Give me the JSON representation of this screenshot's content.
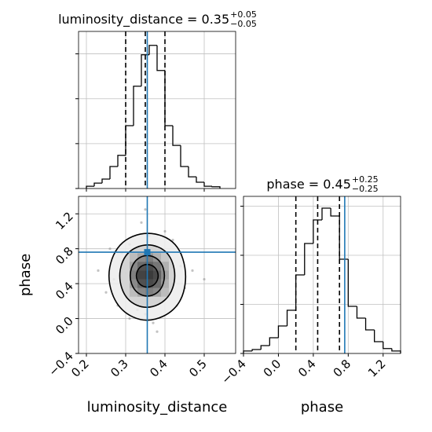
{
  "chart_data": [
    {
      "type": "histogram",
      "title": "luminosity_distance = 0.35",
      "title_upper": "+0.05",
      "title_lower": "−0.05",
      "bins": [
        0.2,
        0.22,
        0.24,
        0.26,
        0.28,
        0.3,
        0.32,
        0.34,
        0.36,
        0.38,
        0.4,
        0.42,
        0.44,
        0.46,
        0.48,
        0.5,
        0.52,
        0.54
      ],
      "values": [
        0.05,
        0.12,
        0.21,
        0.49,
        0.74,
        1.4,
        2.28,
        2.98,
        3.19,
        2.63,
        1.4,
        0.96,
        0.49,
        0.26,
        0.14,
        0.05,
        0.04
      ],
      "color": "#000000",
      "xlim": [
        0.18,
        0.58
      ],
      "xticks": [
        0.2,
        0.3,
        0.4,
        0.5
      ],
      "ylim": [
        0,
        3.5
      ],
      "yticks": [
        0,
        1,
        2,
        3
      ],
      "quantiles": [
        0.3,
        0.35,
        0.4
      ],
      "truth": 0.355,
      "truth_color": "#1f77b4",
      "grid": true
    },
    {
      "type": "scatter",
      "xlabel": "luminosity_distance",
      "ylabel": "phase",
      "x": [
        0.3,
        0.41,
        0.36,
        0.33,
        0.38,
        0.27,
        0.44,
        0.35,
        0.31,
        0.39,
        0.25,
        0.47,
        0.34,
        0.37,
        0.29,
        0.42,
        0.32,
        0.4,
        0.36,
        0.28,
        0.45,
        0.33,
        0.38,
        0.23,
        0.5,
        0.35,
        0.31,
        0.43,
        0.26,
        0.39
      ],
      "y": [
        0.52,
        0.31,
        0.95,
        0.1,
        0.7,
        0.45,
        0.6,
        0.05,
        0.85,
        0.25,
        0.3,
        0.55,
        1.1,
        -0.05,
        0.75,
        0.9,
        0.4,
        1.0,
        0.2,
        0.15,
        0.35,
        0.65,
        -0.15,
        0.55,
        0.45,
        1.25,
        0.0,
        0.15,
        0.8,
        0.58
      ],
      "color": "#888888",
      "hist2d": {
        "x_edges": [
          0.31,
          0.33,
          0.35,
          0.37,
          0.39,
          0.41
        ],
        "y_edges": [
          0.25,
          0.35,
          0.45,
          0.55,
          0.65,
          0.75
        ],
        "counts": [
          [
            0.2,
            0.4,
            0.5,
            0.4,
            0.2
          ],
          [
            0.4,
            0.7,
            0.8,
            0.7,
            0.3
          ],
          [
            0.5,
            0.9,
            1.0,
            0.8,
            0.4
          ],
          [
            0.4,
            0.7,
            0.8,
            0.6,
            0.3
          ],
          [
            0.2,
            0.4,
            0.5,
            0.3,
            0.1
          ]
        ]
      },
      "contours": [
        {
          "x": [
            0.459,
            0.432,
            0.355,
            0.28,
            0.25,
            0.28,
            0.355,
            0.435
          ],
          "y": [
            0.49,
            0.88,
            1.01,
            0.87,
            0.49,
            0.1,
            -0.06,
            0.11
          ]
        },
        {
          "x": [
            0.43,
            0.41,
            0.355,
            0.3,
            0.28,
            0.3,
            0.355,
            0.41
          ],
          "y": [
            0.49,
            0.77,
            0.87,
            0.76,
            0.49,
            0.21,
            0.1,
            0.22
          ]
        },
        {
          "x": [
            0.402,
            0.389,
            0.355,
            0.322,
            0.308,
            0.322,
            0.355,
            0.389
          ],
          "y": [
            0.49,
            0.67,
            0.74,
            0.67,
            0.49,
            0.31,
            0.24,
            0.31
          ]
        },
        {
          "x": [
            0.385,
            0.376,
            0.355,
            0.334,
            0.325,
            0.334,
            0.355,
            0.376
          ],
          "y": [
            0.49,
            0.59,
            0.63,
            0.59,
            0.49,
            0.39,
            0.35,
            0.39
          ]
        }
      ],
      "xlim": [
        0.18,
        0.58
      ],
      "xticks": [
        0.2,
        0.3,
        0.4,
        0.5
      ],
      "ylim": [
        -0.4,
        1.4
      ],
      "yticks": [
        {
          "value": -0.4,
          "label": "−0.4"
        },
        {
          "value": 0,
          "label": "0.0"
        },
        0.4,
        0.8,
        1.2
      ],
      "truth": [
        0.355,
        0.76
      ],
      "truth_color": "#1f77b4",
      "grid": true
    },
    {
      "type": "histogram",
      "title": "phase = 0.45",
      "title_upper": "+0.25",
      "title_lower": "−0.25",
      "xlabel": "phase",
      "bins": [
        -0.4,
        -0.3,
        -0.2,
        -0.1,
        0,
        0.1,
        0.2,
        0.3,
        0.4,
        0.5,
        0.6,
        0.7,
        0.8,
        0.9,
        1.0,
        1.1,
        1.2,
        1.3,
        1.4
      ],
      "values": [
        0.05,
        0.08,
        0.16,
        0.32,
        0.56,
        0.88,
        1.6,
        2.24,
        2.72,
        2.96,
        2.8,
        1.92,
        0.96,
        0.72,
        0.48,
        0.24,
        0.1,
        0.05
      ],
      "color": "#000000",
      "xlim": [
        -0.4,
        1.4
      ],
      "xticks": [
        {
          "value": -0.4,
          "label": "−0.4"
        },
        {
          "value": 0,
          "label": "0.0"
        },
        0.4,
        0.8,
        1.2
      ],
      "ylim": [
        0,
        3.2
      ],
      "yticks": [
        0,
        1,
        2,
        3
      ],
      "quantiles": [
        0.2,
        0.45,
        0.7
      ],
      "truth": 0.76,
      "truth_color": "#1f77b4",
      "grid": true
    }
  ]
}
